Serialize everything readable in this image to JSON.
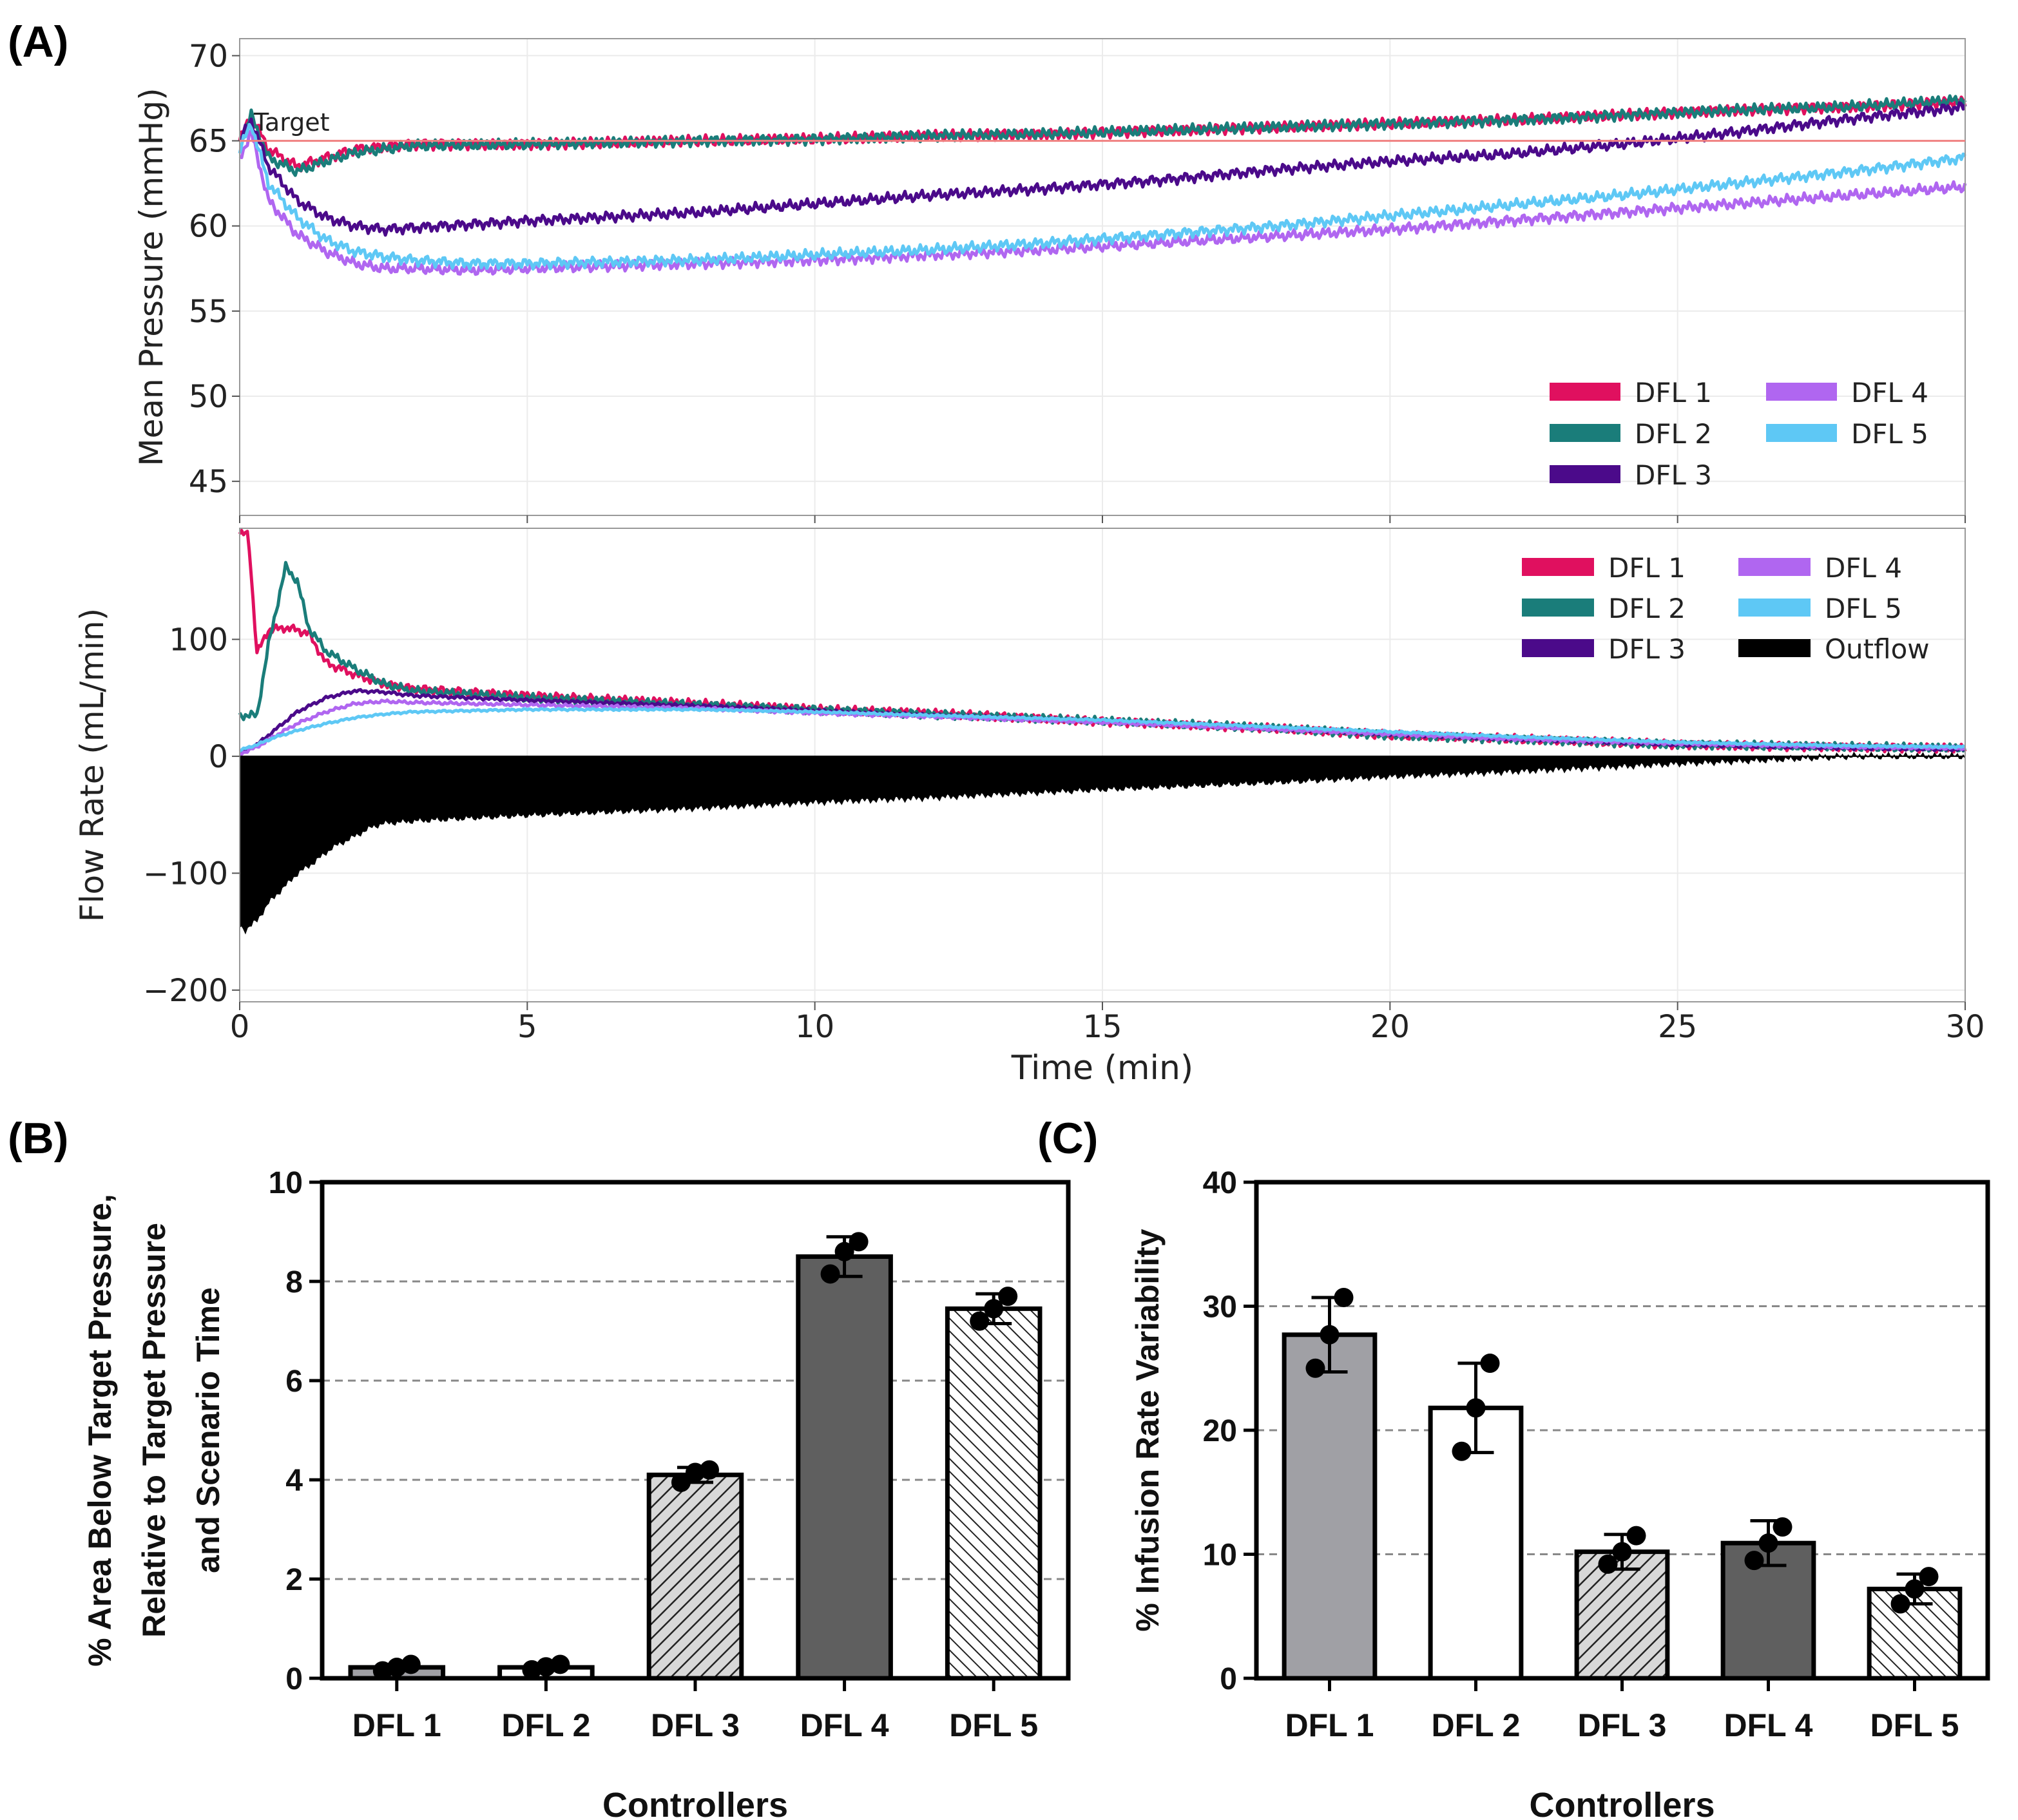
{
  "panels": {
    "a_label": "(A)",
    "b_label": "(B)",
    "c_label": "(C)"
  },
  "chart_data": [
    {
      "id": "A-top",
      "type": "line",
      "ylabel": "Mean Pressure (mmHg)",
      "xlim": [
        0,
        30
      ],
      "ylim": [
        43,
        71
      ],
      "yticks": [
        45,
        50,
        55,
        60,
        65,
        70
      ],
      "xticks": [
        0,
        5,
        10,
        15,
        20,
        25,
        30
      ],
      "grid": true,
      "legend_position": "bottom-right",
      "target": {
        "label": "Target",
        "value": 65,
        "color": "#f08080"
      },
      "series": [
        {
          "name": "DFL 1",
          "color": "#e0105f",
          "x": [
            0,
            0.2,
            0.5,
            1,
            1.5,
            2,
            3,
            5,
            8,
            10,
            12,
            14,
            16,
            18,
            20,
            22,
            24,
            26,
            28,
            30
          ],
          "values": [
            65,
            66.5,
            64.5,
            63.5,
            64,
            64.5,
            64.8,
            64.8,
            65,
            65.1,
            65.3,
            65.4,
            65.6,
            65.8,
            66.0,
            66.2,
            66.5,
            66.8,
            67.0,
            67.3
          ]
        },
        {
          "name": "DFL 2",
          "color": "#1a7d7a",
          "x": [
            0,
            0.2,
            0.5,
            1,
            1.5,
            2,
            3,
            5,
            8,
            10,
            12,
            14,
            16,
            18,
            20,
            22,
            24,
            26,
            28,
            30
          ],
          "values": [
            65,
            66.5,
            64.0,
            63.2,
            63.8,
            64.3,
            64.7,
            64.8,
            65,
            65.1,
            65.3,
            65.4,
            65.6,
            65.8,
            66.0,
            66.2,
            66.5,
            66.8,
            67.0,
            67.4
          ]
        },
        {
          "name": "DFL 3",
          "color": "#4b0a8a",
          "x": [
            0,
            0.2,
            0.5,
            1,
            1.5,
            2,
            2.5,
            3,
            5,
            8,
            10,
            12,
            14,
            16,
            18,
            20,
            22,
            24,
            26,
            28,
            30
          ],
          "values": [
            65,
            66.2,
            63.5,
            61.5,
            60.5,
            60.0,
            59.8,
            59.9,
            60.3,
            60.8,
            61.3,
            61.8,
            62.2,
            62.7,
            63.3,
            63.8,
            64.2,
            64.8,
            65.5,
            66.3,
            67.0
          ]
        },
        {
          "name": "DFL 4",
          "color": "#b066f0",
          "x": [
            0,
            0.2,
            0.5,
            1,
            1.5,
            2,
            2.5,
            3,
            4,
            5,
            8,
            10,
            12,
            14,
            16,
            18,
            20,
            22,
            24,
            26,
            28,
            30
          ],
          "values": [
            64,
            65.5,
            61.5,
            59.5,
            58.5,
            57.8,
            57.5,
            57.5,
            57.4,
            57.5,
            57.8,
            58.0,
            58.3,
            58.6,
            59.0,
            59.4,
            59.8,
            60.3,
            60.8,
            61.3,
            61.8,
            62.3
          ]
        },
        {
          "name": "DFL 5",
          "color": "#5ec8f5",
          "x": [
            0,
            0.2,
            0.5,
            1,
            1.5,
            2,
            2.5,
            3,
            4,
            5,
            8,
            10,
            12,
            14,
            16,
            18,
            20,
            22,
            24,
            26,
            28,
            30
          ],
          "values": [
            64.5,
            66.0,
            62.5,
            60.5,
            59.2,
            58.5,
            58.2,
            58.0,
            57.8,
            57.8,
            58.0,
            58.3,
            58.6,
            59.0,
            59.5,
            60.0,
            60.6,
            61.2,
            61.8,
            62.5,
            63.2,
            64.0
          ]
        }
      ]
    },
    {
      "id": "A-bottom",
      "type": "line",
      "ylabel": "Flow Rate (mL/min)",
      "xlabel": "Time (min)",
      "xlim": [
        0,
        30
      ],
      "ylim": [
        -210,
        195
      ],
      "yticks": [
        100,
        0,
        -100,
        -200
      ],
      "ytick_labels": [
        "100",
        "0",
        "−100",
        "−200"
      ],
      "xticks": [
        0,
        5,
        10,
        15,
        20,
        25,
        30
      ],
      "grid": true,
      "legend_position": "top-right",
      "series": [
        {
          "name": "DFL 1",
          "color": "#e0105f",
          "x": [
            0,
            0.15,
            0.3,
            0.5,
            0.8,
            1.0,
            1.2,
            1.5,
            2,
            2.5,
            3,
            5,
            8,
            10,
            12,
            15,
            18,
            20,
            22,
            25,
            28,
            30
          ],
          "values": [
            190,
            190,
            88,
            108,
            110,
            108,
            105,
            80,
            70,
            62,
            58,
            52,
            45,
            40,
            37,
            30,
            24,
            18,
            15,
            10,
            8,
            7
          ]
        },
        {
          "name": "DFL 2",
          "color": "#1a7d7a",
          "x": [
            0,
            0.3,
            0.5,
            0.7,
            0.8,
            1.0,
            1.2,
            1.5,
            2,
            2.5,
            3,
            5,
            8,
            10,
            12,
            15,
            18,
            20,
            22,
            25,
            28,
            30
          ],
          "values": [
            35,
            35,
            95,
            140,
            162,
            150,
            110,
            90,
            75,
            62,
            56,
            50,
            44,
            40,
            36,
            30,
            24,
            18,
            15,
            10,
            8,
            7
          ]
        },
        {
          "name": "DFL 3",
          "color": "#4b0a8a",
          "x": [
            0,
            0.3,
            0.6,
            1.0,
            1.5,
            2,
            2.5,
            3,
            5,
            8,
            10,
            12,
            15,
            18,
            20,
            22,
            25,
            28,
            30
          ],
          "values": [
            3,
            10,
            22,
            38,
            50,
            56,
            55,
            52,
            48,
            43,
            39,
            35,
            30,
            24,
            19,
            15,
            10,
            7,
            6
          ]
        },
        {
          "name": "DFL 4",
          "color": "#b066f0",
          "x": [
            0,
            0.3,
            0.6,
            1.0,
            1.5,
            2,
            2.5,
            3,
            5,
            8,
            10,
            12,
            15,
            18,
            20,
            22,
            25,
            28,
            30
          ],
          "values": [
            2,
            8,
            17,
            28,
            38,
            45,
            47,
            46,
            44,
            41,
            37,
            34,
            29,
            23,
            19,
            15,
            11,
            8,
            7
          ]
        },
        {
          "name": "DFL 5",
          "color": "#5ec8f5",
          "x": [
            0,
            0.3,
            0.6,
            1.0,
            1.5,
            2,
            2.5,
            3,
            5,
            8,
            10,
            12,
            15,
            18,
            20,
            22,
            25,
            28,
            30
          ],
          "values": [
            5,
            10,
            16,
            22,
            28,
            33,
            36,
            38,
            40,
            40,
            38,
            35,
            31,
            25,
            21,
            17,
            12,
            9,
            8
          ]
        },
        {
          "name": "Outflow",
          "color": "#000000",
          "x": [
            0,
            0.1,
            0.3,
            0.5,
            0.8,
            1.0,
            1.3,
            1.6,
            2.0,
            2.3,
            2.5,
            3,
            5,
            8,
            10,
            12,
            15,
            18,
            20,
            22,
            25,
            27,
            28,
            30
          ],
          "values": [
            -145,
            -148,
            -140,
            -125,
            -110,
            -100,
            -90,
            -78,
            -68,
            -60,
            -57,
            -55,
            -50,
            -44,
            -39,
            -35,
            -28,
            -22,
            -17,
            -13,
            -6,
            -2,
            0,
            0
          ]
        }
      ]
    },
    {
      "id": "B",
      "type": "bar",
      "ylabel": "% Area Below Target Pressure, Relative to Target Pressure and Scenario Time",
      "ylabel_lines": [
        "% Area Below Target Pressure,",
        "Relative to Target Pressure",
        "and Scenario Time"
      ],
      "xlabel": "Controllers",
      "ylim": [
        0,
        10
      ],
      "yticks": [
        0,
        2,
        4,
        6,
        8,
        10
      ],
      "grid": "horizontal-dashed",
      "categories": [
        "DFL 1",
        "DFL 2",
        "DFL 3",
        "DFL 4",
        "DFL 5"
      ],
      "values": [
        0.22,
        0.22,
        4.1,
        8.5,
        7.45
      ],
      "error": [
        0.06,
        0.06,
        0.15,
        0.4,
        0.3
      ],
      "points": [
        [
          0.15,
          0.22,
          0.28
        ],
        [
          0.17,
          0.23,
          0.28
        ],
        [
          3.95,
          4.15,
          4.2
        ],
        [
          8.15,
          8.6,
          8.8
        ],
        [
          7.2,
          7.45,
          7.7
        ]
      ],
      "fills": [
        "#a0a0a5",
        "#ffffff",
        "hatch-forward",
        "#5f5f5f",
        "hatch-back"
      ]
    },
    {
      "id": "C",
      "type": "bar",
      "ylabel": "% Infusion Rate Variability",
      "xlabel": "Controllers",
      "ylim": [
        0,
        40
      ],
      "yticks": [
        0,
        10,
        20,
        30,
        40
      ],
      "grid": "horizontal-dashed",
      "categories": [
        "DFL 1",
        "DFL 2",
        "DFL 3",
        "DFL 4",
        "DFL 5"
      ],
      "values": [
        27.7,
        21.8,
        10.2,
        10.9,
        7.2
      ],
      "error": [
        3.0,
        3.6,
        1.4,
        1.8,
        1.2
      ],
      "points": [
        [
          25.0,
          27.7,
          30.7
        ],
        [
          18.3,
          21.8,
          25.4
        ],
        [
          9.2,
          10.2,
          11.5
        ],
        [
          9.5,
          10.9,
          12.2
        ],
        [
          6.0,
          7.2,
          8.2
        ]
      ],
      "fills": [
        "#a0a0a5",
        "#ffffff",
        "hatch-forward",
        "#5f5f5f",
        "hatch-back"
      ]
    }
  ]
}
